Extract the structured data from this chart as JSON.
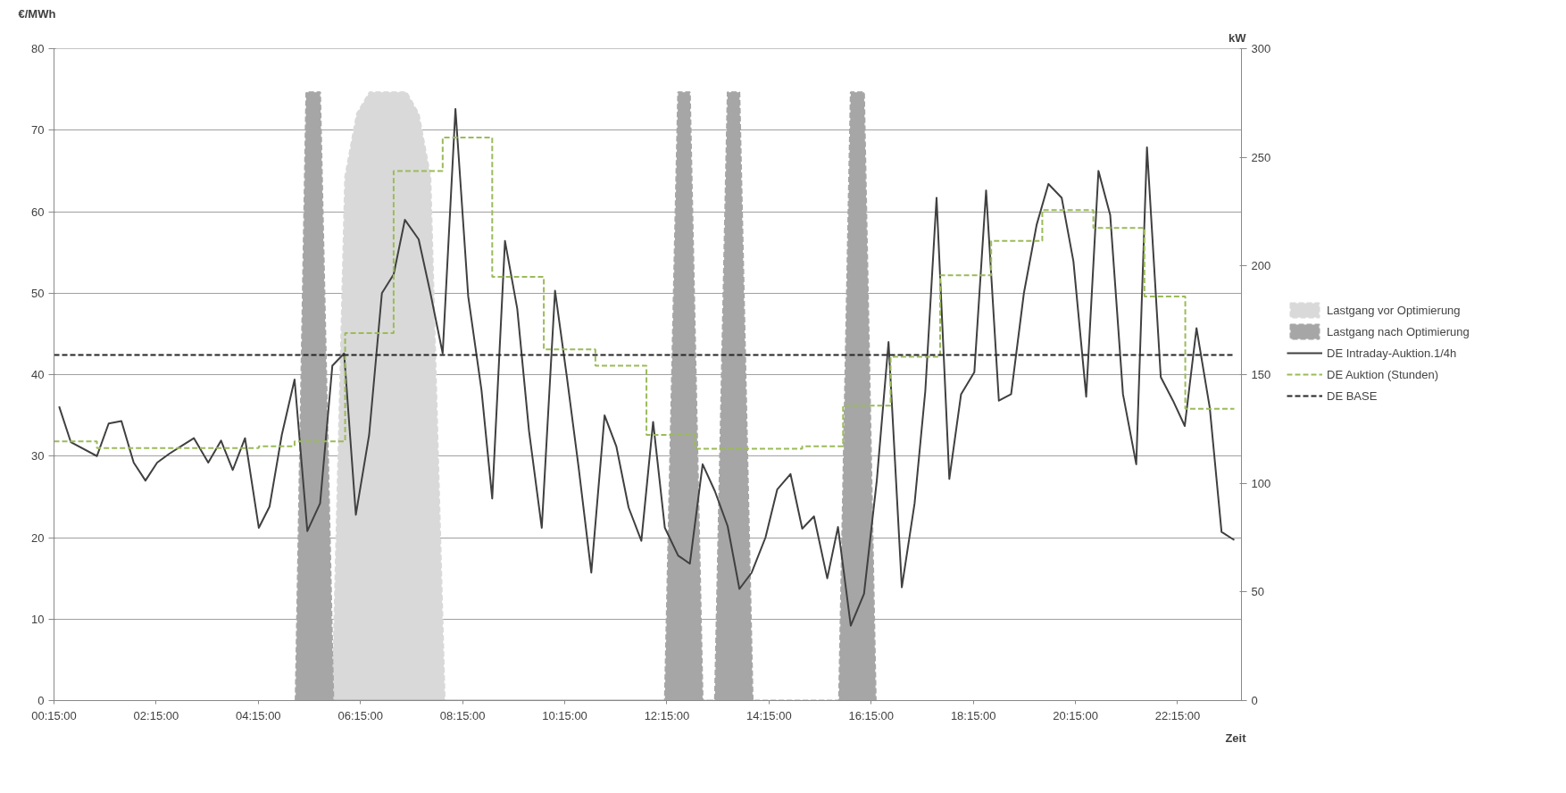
{
  "chart_data": {
    "type": "line",
    "xlabel": "Zeit",
    "ylabel": "€/MWh",
    "y2label": "kW",
    "xlim": [
      0.25,
      23.5
    ],
    "xticks": [
      {
        "value": 0.25,
        "label": "00:15:00"
      },
      {
        "value": 2.25,
        "label": "02:15:00"
      },
      {
        "value": 4.25,
        "label": "04:15:00"
      },
      {
        "value": 6.25,
        "label": "06:15:00"
      },
      {
        "value": 8.25,
        "label": "08:15:00"
      },
      {
        "value": 10.25,
        "label": "10:15:00"
      },
      {
        "value": 12.25,
        "label": "12:15:00"
      },
      {
        "value": 14.25,
        "label": "14:15:00"
      },
      {
        "value": 16.25,
        "label": "16:15:00"
      },
      {
        "value": 18.25,
        "label": "18:15:00"
      },
      {
        "value": 20.25,
        "label": "20:15:00"
      },
      {
        "value": 22.25,
        "label": "22:15:00"
      }
    ],
    "ylim": [
      0,
      80
    ],
    "yticks": [
      0,
      10,
      20,
      30,
      40,
      50,
      60,
      70,
      80
    ],
    "y2lim": [
      0,
      300
    ],
    "y2ticks": [
      0,
      50,
      100,
      150,
      200,
      250,
      300
    ],
    "grid": "y",
    "legend": "right",
    "series": [
      {
        "name": "Lastgang vor Optimierung",
        "type": "area",
        "axis": "y2",
        "color": "#d9d9d9",
        "line_style": "dashed",
        "x": [
          5.7,
          5.95,
          6.18,
          6.43,
          7.15,
          7.39,
          7.62,
          7.9
        ],
        "values": [
          0,
          241,
          270,
          280,
          280,
          270,
          241,
          0
        ]
      },
      {
        "name": "Lastgang nach Optimierung",
        "type": "area",
        "axis": "y2",
        "color": "#a6a6a6",
        "line_style": "dashed",
        "x": [
          4.98,
          5.19,
          5.46,
          5.72,
          12.21,
          12.47,
          12.7,
          12.95,
          13.19,
          13.44,
          13.67,
          13.93,
          15.62,
          15.85,
          16.11,
          16.34
        ],
        "values": [
          0,
          280,
          280,
          0,
          0,
          280,
          280,
          0,
          0,
          280,
          280,
          0,
          0,
          280,
          280,
          0
        ]
      },
      {
        "name": "DE Intraday-Auktion.1/4h",
        "color": "#404040",
        "line_style": "solid",
        "x": [
          0.35,
          0.58,
          1.09,
          1.32,
          1.57,
          1.81,
          2.04,
          2.27,
          2.51,
          2.76,
          2.99,
          3.27,
          3.52,
          3.75,
          3.99,
          4.26,
          4.47,
          4.71,
          4.96,
          5.21,
          5.46,
          5.7,
          5.93,
          6.16,
          6.42,
          6.67,
          6.9,
          7.12,
          7.39,
          7.62,
          7.86,
          8.11,
          8.36,
          8.62,
          8.83,
          9.08,
          9.32,
          9.55,
          9.8,
          10.06,
          10.29,
          10.52,
          10.77,
          11.03,
          11.26,
          11.5,
          11.75,
          11.98,
          12.21,
          12.47,
          12.7,
          12.95,
          13.19,
          13.44,
          13.67,
          13.91,
          14.18,
          14.41,
          14.67,
          14.9,
          15.13,
          15.39,
          15.6,
          15.85,
          16.11,
          16.36,
          16.59,
          16.85,
          17.1,
          17.31,
          17.53,
          17.78,
          18.01,
          18.27,
          18.5,
          18.75,
          18.99,
          19.24,
          19.49,
          19.72,
          19.98,
          20.21,
          20.46,
          20.7,
          20.93,
          21.18,
          21.44,
          21.65,
          21.92,
          22.16,
          22.39,
          22.62,
          22.88,
          23.11,
          23.36
        ],
        "values": [
          36.1,
          31.7,
          30,
          34,
          34.3,
          29.2,
          27,
          29.2,
          30.3,
          31.3,
          32.2,
          29.2,
          31.9,
          28.3,
          32.2,
          21.2,
          23.8,
          32.6,
          39.4,
          20.8,
          24.2,
          41.1,
          42.6,
          22.8,
          32.6,
          50,
          52.3,
          59,
          56.6,
          50,
          42.6,
          72.6,
          49.6,
          38.1,
          24.8,
          56.4,
          48.1,
          33.1,
          21.2,
          50.3,
          39.8,
          28.7,
          15.7,
          35,
          31.2,
          23.7,
          19.6,
          34.2,
          21.2,
          17.8,
          16.8,
          29,
          25.7,
          21.4,
          13.7,
          15.7,
          20,
          25.9,
          27.8,
          21.1,
          22.6,
          15,
          21.3,
          9.2,
          13.1,
          27,
          44,
          13.9,
          24.2,
          38,
          61.7,
          27.2,
          37.6,
          40.3,
          62.6,
          36.8,
          37.6,
          50,
          58.4,
          63.4,
          61.7,
          53.9,
          37.3,
          65,
          59.6,
          37.6,
          29,
          67.9,
          39.7,
          36.8,
          33.7,
          45.7,
          35.9,
          20.7,
          19.7
        ]
      },
      {
        "name": "DE Auktion (Stunden)",
        "type": "step",
        "color": "#9bbb59",
        "line_style": "dashed",
        "x": [
          0.25,
          1.09,
          4.26,
          4.96,
          5.95,
          6.9,
          7.86,
          8.83,
          9.84,
          10.85,
          11.85,
          12.8,
          14.9,
          15.7,
          16.63,
          17.6,
          18.6,
          19.6,
          20.6,
          21.6,
          22.4,
          23.36
        ],
        "values": [
          31.8,
          31,
          31.2,
          31.8,
          45.1,
          65,
          69.1,
          52,
          43.1,
          41.1,
          32.6,
          30.9,
          31.2,
          36.2,
          42.2,
          52.2,
          56.4,
          60.2,
          58,
          49.6,
          35.8,
          35.8
        ]
      },
      {
        "name": "DE BASE",
        "type": "line",
        "color": "#262626",
        "line_style": "dashed",
        "x": [
          0.25,
          23.36
        ],
        "values": [
          42.4,
          42.4
        ]
      }
    ]
  }
}
